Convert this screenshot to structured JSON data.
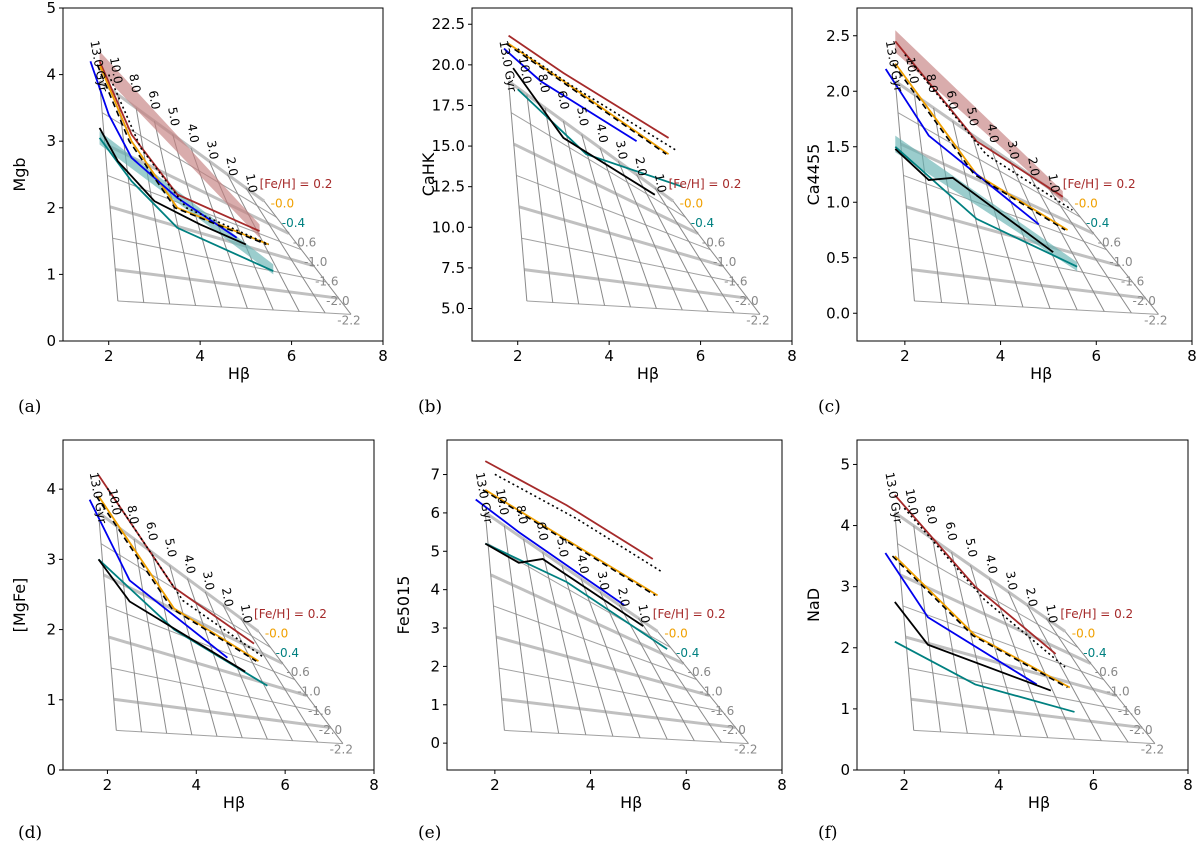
{
  "figure": {
    "colors": {
      "grid": "#8a8a8a",
      "grid_light": "#b0b0b0",
      "fe_p02": "#a52a2a",
      "fe_p02_band": "#c58080",
      "fe_00": "#f0a000",
      "fe_m04": "#008080",
      "fe_m04_band": "#66b2b2",
      "blue": "#0000ee",
      "black": "#000000",
      "label_gray": "#888888"
    }
  },
  "chart_data": [
    {
      "type": "line",
      "panel": "(a)",
      "xlabel": "Hβ",
      "ylabel": "Mgb",
      "xlim": [
        1.0,
        8.0
      ],
      "ylim": [
        0,
        5
      ],
      "xticks": [
        "2",
        "4",
        "6",
        "8"
      ],
      "yticks": [
        "0",
        "1",
        "2",
        "3",
        "4",
        "5"
      ],
      "bands": [
        {
          "name": "p02",
          "lower": [
            [
              1.8,
              4.05
            ],
            [
              5.3,
              1.55
            ]
          ],
          "upper": [
            [
              1.8,
              4.35
            ],
            [
              5.3,
              1.75
            ]
          ]
        },
        {
          "name": "m04",
          "lower": [
            [
              1.8,
              2.95
            ],
            [
              5.6,
              1.0
            ]
          ],
          "upper": [
            [
              1.8,
              3.15
            ],
            [
              5.6,
              1.15
            ]
          ]
        }
      ],
      "age_labels": [
        "13.0 Gyr",
        "10.0",
        "8.0",
        "6.0",
        "5.0",
        "4.0",
        "3.0",
        "2.0",
        "1.0"
      ],
      "feh_labels": [
        "[Fe/H] = 0.2",
        "-0.0",
        "-0.4",
        "-0.6",
        "-1.0",
        "-1.6",
        "-2.0",
        "-2.2"
      ],
      "series": [
        {
          "name": "[Fe/H] = 0.2",
          "color": "fe_p02",
          "points": [
            [
              1.8,
              4.2
            ],
            [
              2.5,
              3.1
            ],
            [
              3.5,
              2.2
            ],
            [
              5.3,
              1.65
            ]
          ]
        },
        {
          "name": "-0.0",
          "color": "fe_00",
          "points": [
            [
              1.8,
              4.15
            ],
            [
              2.5,
              3.0
            ],
            [
              3.5,
              2.0
            ],
            [
              5.5,
              1.45
            ]
          ]
        },
        {
          "name": "-0.4",
          "color": "fe_m04",
          "points": [
            [
              1.8,
              3.05
            ],
            [
              2.5,
              2.4
            ],
            [
              3.5,
              1.7
            ],
            [
              5.6,
              1.05
            ]
          ]
        },
        {
          "name": "blue",
          "color": "blue",
          "points": [
            [
              1.6,
              4.2
            ],
            [
              2.0,
              3.4
            ],
            [
              2.5,
              2.75
            ],
            [
              3.5,
              2.15
            ],
            [
              4.8,
              1.55
            ]
          ]
        },
        {
          "name": "black",
          "color": "black",
          "points": [
            [
              1.8,
              3.2
            ],
            [
              2.2,
              2.7
            ],
            [
              3.0,
              2.1
            ],
            [
              4.0,
              1.75
            ],
            [
              5.0,
              1.45
            ]
          ]
        }
      ]
    },
    {
      "type": "line",
      "panel": "(b)",
      "xlabel": "Hβ",
      "ylabel": "CaHK",
      "xlim": [
        1.0,
        8.0
      ],
      "ylim": [
        3.0,
        23.5
      ],
      "xticks": [
        "2",
        "4",
        "6",
        "8"
      ],
      "yticks": [
        "5.0",
        "7.5",
        "10.0",
        "12.5",
        "15.0",
        "17.5",
        "20.0",
        "22.5"
      ],
      "bands": [],
      "age_labels": [
        "13.0 Gyr",
        "10.0",
        "8.0",
        "6.0",
        "5.0",
        "4.0",
        "3.0",
        "2.0",
        "1.0"
      ],
      "feh_labels": [
        "[Fe/H] = 0.2",
        "-0.0",
        "-0.4",
        "-0.6",
        "-1.0",
        "-1.6",
        "-2.0",
        "-2.2"
      ],
      "series": [
        {
          "name": "[Fe/H] = 0.2",
          "color": "fe_p02",
          "points": [
            [
              1.8,
              21.8
            ],
            [
              3.0,
              19.5
            ],
            [
              5.3,
              15.5
            ]
          ]
        },
        {
          "name": "-0.0",
          "color": "fe_00",
          "points": [
            [
              1.8,
              21.3
            ],
            [
              3.0,
              19.0
            ],
            [
              5.3,
              14.5
            ]
          ]
        },
        {
          "name": "-0.4",
          "color": "fe_m04",
          "points": [
            [
              2.0,
              18.5
            ],
            [
              3.5,
              14.5
            ],
            [
              5.6,
              12.5
            ]
          ]
        },
        {
          "name": "blue",
          "color": "blue",
          "points": [
            [
              1.7,
              21.0
            ],
            [
              2.5,
              19.0
            ],
            [
              4.6,
              15.3
            ]
          ]
        },
        {
          "name": "black",
          "color": "black",
          "points": [
            [
              1.9,
              19.8
            ],
            [
              3.0,
              15.5
            ],
            [
              5.0,
              12.0
            ]
          ]
        }
      ]
    },
    {
      "type": "line",
      "panel": "(c)",
      "xlabel": "Hβ",
      "ylabel": "Ca4455",
      "xlim": [
        1.0,
        8.0
      ],
      "ylim": [
        -0.25,
        2.75
      ],
      "xticks": [
        "2",
        "4",
        "6",
        "8"
      ],
      "yticks": [
        "0.0",
        "0.5",
        "1.0",
        "1.5",
        "2.0",
        "2.5"
      ],
      "bands": [
        {
          "name": "p02",
          "lower": [
            [
              1.8,
              2.35
            ],
            [
              5.3,
              1.0
            ]
          ],
          "upper": [
            [
              1.8,
              2.55
            ],
            [
              5.3,
              1.1
            ]
          ]
        },
        {
          "name": "m04",
          "lower": [
            [
              1.8,
              1.45
            ],
            [
              5.6,
              0.38
            ]
          ],
          "upper": [
            [
              1.8,
              1.6
            ],
            [
              5.6,
              0.46
            ]
          ]
        }
      ],
      "age_labels": [
        "13.0 Gyr",
        "10.0",
        "8.0",
        "6.0",
        "5.0",
        "4.0",
        "3.0",
        "2.0",
        "1.0"
      ],
      "feh_labels": [
        "[Fe/H] = 0.2",
        "-0.0",
        "-0.4",
        "-0.6",
        "-1.0",
        "-1.6",
        "-2.0",
        "-2.2"
      ],
      "series": [
        {
          "name": "[Fe/H] = 0.2",
          "color": "fe_p02",
          "points": [
            [
              1.8,
              2.45
            ],
            [
              3.5,
              1.55
            ],
            [
              5.3,
              1.05
            ]
          ]
        },
        {
          "name": "-0.0",
          "color": "fe_00",
          "points": [
            [
              1.8,
              2.25
            ],
            [
              3.5,
              1.25
            ],
            [
              5.4,
              0.75
            ]
          ]
        },
        {
          "name": "-0.4",
          "color": "fe_m04",
          "points": [
            [
              1.8,
              1.5
            ],
            [
              3.5,
              0.85
            ],
            [
              5.6,
              0.42
            ]
          ]
        },
        {
          "name": "blue",
          "color": "blue",
          "points": [
            [
              1.6,
              2.2
            ],
            [
              2.5,
              1.6
            ],
            [
              4.8,
              0.8
            ]
          ]
        },
        {
          "name": "black",
          "color": "black",
          "points": [
            [
              1.8,
              1.48
            ],
            [
              2.5,
              1.2
            ],
            [
              3.0,
              1.22
            ],
            [
              5.1,
              0.55
            ]
          ]
        }
      ]
    },
    {
      "type": "line",
      "panel": "(d)",
      "xlabel": "Hβ",
      "ylabel": "[MgFe]",
      "xlim": [
        1.0,
        8.0
      ],
      "ylim": [
        0,
        4.7
      ],
      "xticks": [
        "2",
        "4",
        "6",
        "8"
      ],
      "yticks": [
        "0",
        "1",
        "2",
        "3",
        "4"
      ],
      "bands": [],
      "age_labels": [
        "13.0 Gyr",
        "10.0",
        "8.0",
        "6.0",
        "5.0",
        "4.0",
        "3.0",
        "2.0",
        "1.0"
      ],
      "feh_labels": [
        "[Fe/H] = 0.2",
        "-0.0",
        "-0.4",
        "-0.6",
        "-1.0",
        "-1.6",
        "-2.0",
        "-2.2"
      ],
      "series": [
        {
          "name": "[Fe/H] = 0.2",
          "color": "fe_p02",
          "points": [
            [
              1.8,
              4.2
            ],
            [
              3.5,
              2.6
            ],
            [
              5.3,
              1.8
            ]
          ]
        },
        {
          "name": "-0.0",
          "color": "fe_00",
          "points": [
            [
              1.8,
              3.9
            ],
            [
              3.5,
              2.3
            ],
            [
              5.4,
              1.55
            ]
          ]
        },
        {
          "name": "-0.4",
          "color": "fe_m04",
          "points": [
            [
              1.8,
              3.0
            ],
            [
              3.5,
              2.0
            ],
            [
              5.6,
              1.2
            ]
          ]
        },
        {
          "name": "blue",
          "color": "blue",
          "points": [
            [
              1.6,
              3.85
            ],
            [
              2.5,
              2.7
            ],
            [
              4.7,
              1.6
            ]
          ]
        },
        {
          "name": "black",
          "color": "black",
          "points": [
            [
              1.8,
              3.0
            ],
            [
              2.5,
              2.4
            ],
            [
              5.1,
              1.4
            ]
          ]
        }
      ]
    },
    {
      "type": "line",
      "panel": "(e)",
      "xlabel": "Hβ",
      "ylabel": "Fe5015",
      "xlim": [
        1.0,
        8.0
      ],
      "ylim": [
        -0.7,
        7.9
      ],
      "xticks": [
        "2",
        "4",
        "6",
        "8"
      ],
      "yticks": [
        "0",
        "1",
        "2",
        "3",
        "4",
        "5",
        "6",
        "7"
      ],
      "bands": [],
      "age_labels": [
        "13.0 Gyr",
        "10.0",
        "8.0",
        "6.0",
        "5.0",
        "4.0",
        "3.0",
        "2.0",
        "1.0"
      ],
      "feh_labels": [
        "[Fe/H] = 0.2",
        "-0.0",
        "-0.4",
        "-0.6",
        "-1.0",
        "-1.6",
        "-2.0",
        "-2.2"
      ],
      "series": [
        {
          "name": "[Fe/H] = 0.2",
          "color": "fe_p02",
          "points": [
            [
              1.8,
              7.35
            ],
            [
              3.5,
              6.2
            ],
            [
              5.3,
              4.8
            ]
          ]
        },
        {
          "name": "-0.0",
          "color": "fe_00",
          "points": [
            [
              1.8,
              6.6
            ],
            [
              3.5,
              5.3
            ],
            [
              5.4,
              3.85
            ]
          ]
        },
        {
          "name": "-0.4",
          "color": "fe_m04",
          "points": [
            [
              1.8,
              5.2
            ],
            [
              3.5,
              4.2
            ],
            [
              5.6,
              2.45
            ]
          ]
        },
        {
          "name": "blue",
          "color": "blue",
          "points": [
            [
              1.6,
              6.35
            ],
            [
              2.5,
              5.5
            ],
            [
              4.7,
              3.6
            ]
          ]
        },
        {
          "name": "black",
          "color": "black",
          "points": [
            [
              1.8,
              5.2
            ],
            [
              2.5,
              4.7
            ],
            [
              3.0,
              4.8
            ],
            [
              5.1,
              3.05
            ]
          ]
        }
      ]
    },
    {
      "type": "line",
      "panel": "(f)",
      "xlabel": "Hβ",
      "ylabel": "NaD",
      "xlim": [
        1.0,
        8.0
      ],
      "ylim": [
        0,
        5.4
      ],
      "xticks": [
        "2",
        "4",
        "6",
        "8"
      ],
      "yticks": [
        "0",
        "1",
        "2",
        "3",
        "4",
        "5"
      ],
      "bands": [],
      "age_labels": [
        "13.0 Gyr",
        "10.0",
        "8.0",
        "6.0",
        "5.0",
        "4.0",
        "3.0",
        "2.0",
        "1.0"
      ],
      "feh_labels": [
        "[Fe/H] = 0.2",
        "-0.0",
        "-0.4",
        "-0.6",
        "-1.0",
        "-1.6",
        "-2.0",
        "-2.2"
      ],
      "series": [
        {
          "name": "[Fe/H] = 0.2",
          "color": "fe_p02",
          "points": [
            [
              1.8,
              4.5
            ],
            [
              3.5,
              3.0
            ],
            [
              5.2,
              1.9
            ]
          ]
        },
        {
          "name": "-0.0",
          "color": "fe_00",
          "points": [
            [
              1.8,
              3.5
            ],
            [
              3.5,
              2.2
            ],
            [
              5.5,
              1.35
            ]
          ]
        },
        {
          "name": "-0.4",
          "color": "fe_m04",
          "points": [
            [
              1.8,
              2.1
            ],
            [
              3.5,
              1.4
            ],
            [
              5.6,
              0.95
            ]
          ]
        },
        {
          "name": "blue",
          "color": "blue",
          "points": [
            [
              1.6,
              3.55
            ],
            [
              2.5,
              2.5
            ],
            [
              4.8,
              1.4
            ]
          ]
        },
        {
          "name": "black",
          "color": "black",
          "points": [
            [
              1.8,
              2.75
            ],
            [
              2.5,
              2.05
            ],
            [
              5.1,
              1.3
            ]
          ]
        }
      ]
    }
  ]
}
